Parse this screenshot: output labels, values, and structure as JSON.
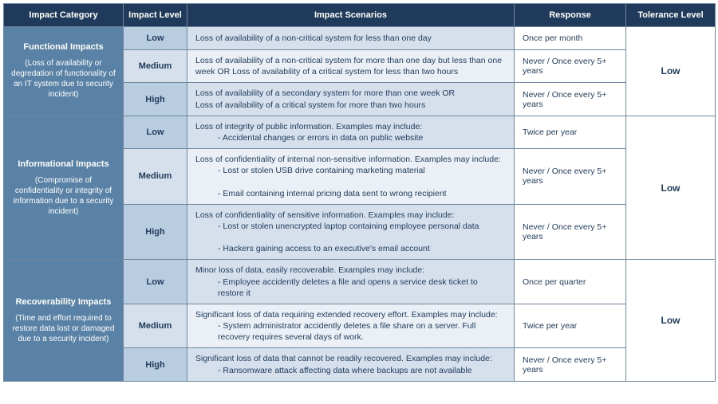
{
  "headers": {
    "category": "Impact Category",
    "level": "Impact Level",
    "scenarios": "Impact Scenarios",
    "response": "Response",
    "tolerance": "Tolerance Level"
  },
  "levels": {
    "low": "Low",
    "medium": "Medium",
    "high": "High"
  },
  "categories": [
    {
      "title": "Functional Impacts",
      "desc": "(Loss of availability or degredation of functionality of an IT system due to security incident)",
      "tolerance": "Low",
      "rows": [
        {
          "level": "low",
          "scenario_main": "Loss of availability of a non-critical system for less than one day",
          "scenario_items": [],
          "response": "Once per month"
        },
        {
          "level": "medium",
          "scenario_main": "Loss of availability of a non-critical system for more than one day but less than one week OR Loss of availability of a critical system for less than two hours",
          "scenario_items": [],
          "response": "Never / Once every 5+ years"
        },
        {
          "level": "high",
          "scenario_main": "Loss of availability of a secondary system for more than one week OR\nLoss of availability of a critical system for more than two hours",
          "scenario_items": [],
          "response": "Never / Once every 5+ years"
        }
      ]
    },
    {
      "title": "Informational Impacts",
      "desc": "(Compromise of confidentiality or integrity of information due to a security incident)",
      "tolerance": "Low",
      "rows": [
        {
          "level": "low",
          "scenario_main": "Loss of integrity of public information. Examples may include:",
          "scenario_items": [
            "- Accidental changes or errors in data on public website"
          ],
          "response": "Twice per year"
        },
        {
          "level": "medium",
          "scenario_main": "Loss of confidentiality of internal non-sensitive information. Examples may include:",
          "scenario_items": [
            "- Lost or stolen USB drive containing marketing material",
            "- Email containing internal pricing data sent to wrong recipient"
          ],
          "response": "Never / Once every 5+ years"
        },
        {
          "level": "high",
          "scenario_main": "Loss of confidentiality of sensitive information. Examples may include:",
          "scenario_items": [
            "- Lost or stolen unencrypted laptop containing employee personal data",
            "- Hackers gaining access to an executive's email account"
          ],
          "response": "Never / Once every 5+ years"
        }
      ]
    },
    {
      "title": "Recoverability Impacts",
      "desc": "(Time and effort required to restore data lost or damaged due to a security incident)",
      "tolerance": "Low",
      "rows": [
        {
          "level": "low",
          "scenario_main": "Minor loss of data, easily recoverable. Examples may include:",
          "scenario_items": [
            "- Employee accidently deletes a file and opens a service desk ticket to restore it"
          ],
          "response": "Once per quarter"
        },
        {
          "level": "medium",
          "scenario_main": "Significant loss of data requiring extended recovery effort. Examples may include:",
          "scenario_items": [
            "- System administrator accidently deletes a file share on a server. Full recovery requires several days of work."
          ],
          "response": "Twice per year"
        },
        {
          "level": "high",
          "scenario_main": "Significant loss of data that cannot be readily recovered. Examples may include:",
          "scenario_items": [
            "- Ransomware attack affecting data where backups are not available"
          ],
          "response": "Never / Once every 5+ years"
        }
      ]
    }
  ],
  "colors": {
    "header_bg": "#1f3a5a",
    "header_text": "#ffffff",
    "category_bg": "#5a82a6",
    "row_alt_a": "#b9cde0",
    "row_alt_b": "#d5e0ec",
    "scn_alt_a": "#d5e0ec",
    "scn_alt_b": "#eaf0f6",
    "border": "#6e879e",
    "text": "#1f3a5a"
  }
}
